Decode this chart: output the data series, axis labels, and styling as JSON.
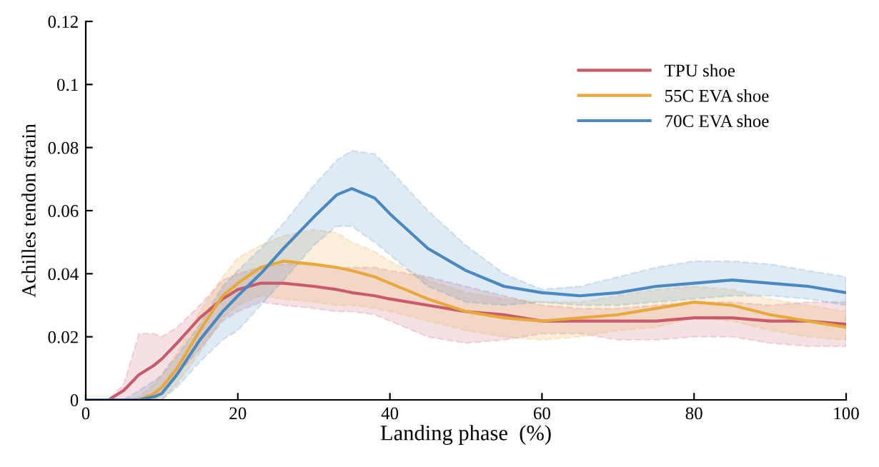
{
  "chart_data": {
    "type": "line",
    "xlabel": "Landing phase  (%)",
    "ylabel": "Achilles tendon strain",
    "x": [
      0,
      3,
      5,
      7,
      9,
      10,
      12,
      15,
      18,
      20,
      23,
      26,
      30,
      33,
      35,
      38,
      40,
      45,
      50,
      55,
      60,
      65,
      70,
      75,
      80,
      85,
      90,
      95,
      100
    ],
    "series": [
      {
        "name": "TPU shoe",
        "color": "#c85a6a",
        "values": [
          0,
          0,
          0.003,
          0.008,
          0.011,
          0.013,
          0.018,
          0.026,
          0.032,
          0.035,
          0.037,
          0.037,
          0.036,
          0.035,
          0.034,
          0.033,
          0.032,
          0.03,
          0.028,
          0.027,
          0.025,
          0.025,
          0.025,
          0.025,
          0.026,
          0.026,
          0.025,
          0.025,
          0.024
        ],
        "lower": [
          0,
          0,
          0,
          0,
          0,
          0.002,
          0.008,
          0.016,
          0.025,
          0.028,
          0.031,
          0.03,
          0.029,
          0.028,
          0.028,
          0.027,
          0.025,
          0.02,
          0.018,
          0.019,
          0.021,
          0.021,
          0.019,
          0.019,
          0.02,
          0.02,
          0.018,
          0.017,
          0.017
        ],
        "upper": [
          0,
          0,
          0.005,
          0.021,
          0.021,
          0.02,
          0.023,
          0.03,
          0.038,
          0.04,
          0.042,
          0.043,
          0.043,
          0.042,
          0.042,
          0.042,
          0.041,
          0.039,
          0.036,
          0.033,
          0.03,
          0.029,
          0.029,
          0.03,
          0.031,
          0.031,
          0.03,
          0.031,
          0.031
        ]
      },
      {
        "name": "55C EVA shoe",
        "color": "#e8a93c",
        "values": [
          null,
          null,
          0,
          0,
          0.002,
          0.004,
          0.01,
          0.022,
          0.033,
          0.037,
          0.042,
          0.044,
          0.043,
          0.042,
          0.041,
          0.039,
          0.037,
          0.032,
          0.028,
          0.026,
          0.025,
          0.026,
          0.027,
          0.029,
          0.031,
          0.03,
          0.027,
          0.025,
          0.023
        ],
        "lower": [
          0,
          0,
          0,
          0,
          0,
          0,
          0.005,
          0.015,
          0.026,
          0.03,
          0.033,
          0.032,
          0.031,
          0.03,
          0.03,
          0.029,
          0.028,
          0.025,
          0.022,
          0.02,
          0.019,
          0.02,
          0.022,
          0.023,
          0.026,
          0.025,
          0.022,
          0.02,
          0.019
        ],
        "upper": [
          0,
          0,
          0,
          0.001,
          0.005,
          0.008,
          0.015,
          0.028,
          0.039,
          0.045,
          0.049,
          0.052,
          0.054,
          0.053,
          0.05,
          0.047,
          0.044,
          0.038,
          0.034,
          0.032,
          0.031,
          0.031,
          0.033,
          0.035,
          0.036,
          0.035,
          0.032,
          0.03,
          0.028
        ]
      },
      {
        "name": "70C EVA shoe",
        "color": "#4a88c0",
        "values": [
          0,
          0,
          0,
          0,
          0.001,
          0.002,
          0.008,
          0.019,
          0.028,
          0.033,
          0.04,
          0.048,
          0.058,
          0.065,
          0.067,
          0.064,
          0.059,
          0.048,
          0.041,
          0.036,
          0.034,
          0.033,
          0.034,
          0.036,
          0.037,
          0.038,
          0.037,
          0.036,
          0.034
        ],
        "lower": [
          0,
          0,
          0,
          0,
          0,
          0,
          0.004,
          0.012,
          0.019,
          0.022,
          0.03,
          0.038,
          0.049,
          0.055,
          0.055,
          0.05,
          0.046,
          0.036,
          0.031,
          0.03,
          0.031,
          0.03,
          0.03,
          0.031,
          0.032,
          0.033,
          0.033,
          0.032,
          0.03
        ],
        "upper": [
          0,
          0,
          0,
          0.003,
          0.006,
          0.008,
          0.014,
          0.024,
          0.036,
          0.041,
          0.048,
          0.056,
          0.068,
          0.076,
          0.079,
          0.078,
          0.073,
          0.06,
          0.049,
          0.04,
          0.035,
          0.036,
          0.039,
          0.042,
          0.044,
          0.044,
          0.043,
          0.041,
          0.039
        ]
      }
    ],
    "xlim": [
      0,
      100
    ],
    "ylim": [
      0,
      0.12
    ],
    "xticks": [
      0,
      20,
      40,
      60,
      80,
      100
    ],
    "yticks": [
      {
        "value": 0,
        "label": "0"
      },
      0.02,
      0.04,
      0.06,
      0.08,
      0.1,
      0.12
    ],
    "grid": false,
    "legend": "top right",
    "marker": "none",
    "line_style": "solid"
  }
}
